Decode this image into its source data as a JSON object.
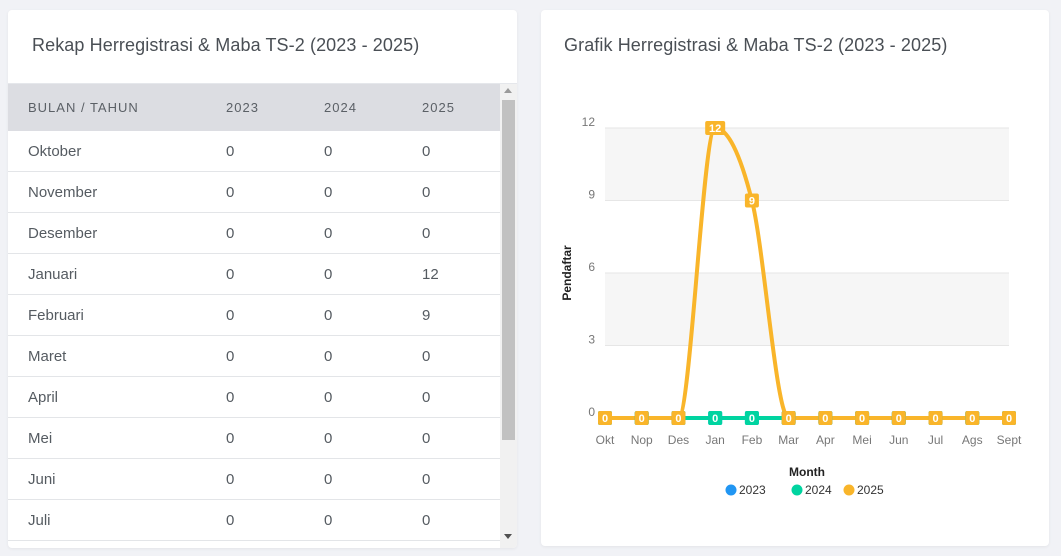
{
  "table_card": {
    "title": "Rekap Herregistrasi & Maba TS-2 (2023 - 2025)",
    "columns": [
      "BULAN / TAHUN",
      "2023",
      "2024",
      "2025"
    ],
    "rows": [
      [
        "Oktober",
        "0",
        "0",
        "0"
      ],
      [
        "November",
        "0",
        "0",
        "0"
      ],
      [
        "Desember",
        "0",
        "0",
        "0"
      ],
      [
        "Januari",
        "0",
        "0",
        "12"
      ],
      [
        "Februari",
        "0",
        "0",
        "9"
      ],
      [
        "Maret",
        "0",
        "0",
        "0"
      ],
      [
        "April",
        "0",
        "0",
        "0"
      ],
      [
        "Mei",
        "0",
        "0",
        "0"
      ],
      [
        "Juni",
        "0",
        "0",
        "0"
      ],
      [
        "Juli",
        "0",
        "0",
        "0"
      ]
    ]
  },
  "chart_card": {
    "title": "Grafik Herregistrasi & Maba TS-2 (2023 - 2025)"
  },
  "chart_data": {
    "type": "line",
    "title": "Grafik Herregistrasi & Maba TS-2 (2023 - 2025)",
    "xlabel": "Month",
    "ylabel": "Pendaftar",
    "categories": [
      "Okt",
      "Nop",
      "Des",
      "Jan",
      "Feb",
      "Mar",
      "Apr",
      "Mei",
      "Jun",
      "Jul",
      "Ags",
      "Sept"
    ],
    "yticks": [
      0,
      3,
      6,
      9,
      12
    ],
    "ylim": [
      0,
      12
    ],
    "grid": true,
    "legend_position": "bottom",
    "series": [
      {
        "name": "2023",
        "color": "#2196f3",
        "values": [
          0,
          0,
          0,
          0,
          0,
          0,
          0,
          0,
          0,
          0,
          0,
          0
        ]
      },
      {
        "name": "2024",
        "color": "#00d4a0",
        "values": [
          0,
          0,
          0,
          0,
          0,
          0,
          0,
          0,
          0,
          0,
          0,
          0
        ]
      },
      {
        "name": "2025",
        "color": "#f9b52a",
        "values": [
          0,
          0,
          0,
          12,
          9,
          0,
          0,
          0,
          0,
          0,
          0,
          0
        ]
      }
    ]
  }
}
